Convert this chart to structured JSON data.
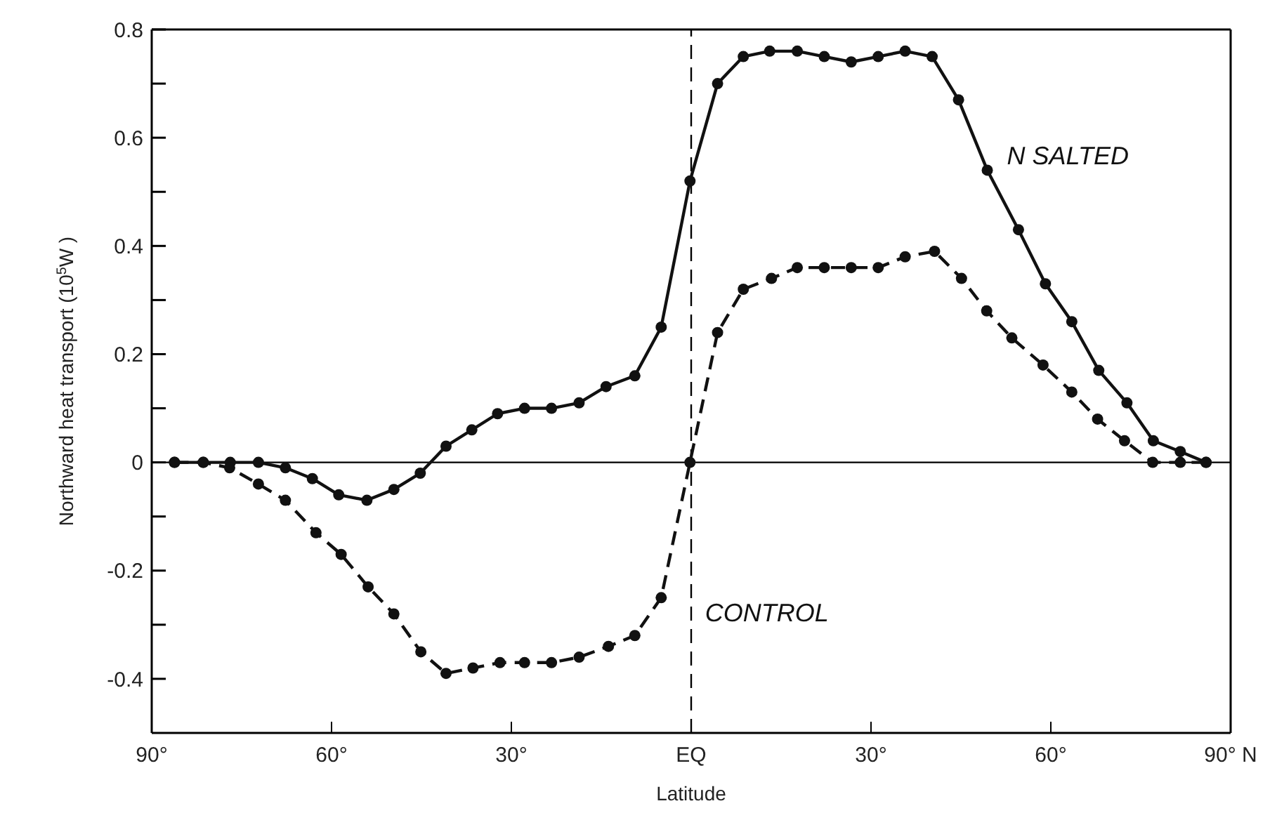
{
  "chart_data": {
    "type": "line",
    "xlabel": "Latitude",
    "ylabel": "Northward heat transport (10$^{5}$W )",
    "xlim": [
      -90,
      90
    ],
    "xticks": [
      {
        "value": -90,
        "label": "90°"
      },
      {
        "value": -60,
        "label": "60°"
      },
      {
        "value": -30,
        "label": "30°"
      },
      {
        "value": 0,
        "label": "EQ"
      },
      {
        "value": 30,
        "label": "30°"
      },
      {
        "value": 60,
        "label": "60°"
      },
      {
        "value": 90,
        "label": "90° N"
      }
    ],
    "ylim": [
      -0.5,
      0.8
    ],
    "yticks": [
      -0.4,
      {
        "value": -0.3,
        "label": null
      },
      -0.2,
      {
        "value": -0.1,
        "label": null
      },
      0,
      {
        "value": 0.1,
        "label": null
      },
      0.2,
      {
        "value": 0.3,
        "label": null
      },
      0.4,
      {
        "value": 0.5,
        "label": null
      },
      0.6,
      {
        "value": 0.7,
        "label": null
      },
      0.8
    ],
    "marker": "circle",
    "ref_lines": [
      {
        "axis": "x",
        "value": 0,
        "line_style": "dashed",
        "color": "#000000"
      },
      {
        "axis": "y",
        "value": 0,
        "line_style": "solid",
        "color": "#000000"
      }
    ],
    "series": [
      {
        "name": "N SALTED",
        "color": "#111111",
        "line_style": "solid",
        "x": [
          -86.2,
          -81.4,
          -76.9,
          -72.2,
          -67.7,
          -63.2,
          -58.8,
          -54.1,
          -49.6,
          -45.2,
          -40.9,
          -36.6,
          -32.3,
          -27.8,
          -23.3,
          -18.7,
          -14.2,
          -9.4,
          -5,
          -0.2,
          4.4,
          8.7,
          13.1,
          17.7,
          22.2,
          26.7,
          31.2,
          35.7,
          40.2,
          44.6,
          49.4,
          54.6,
          59.1,
          63.5,
          68,
          72.7,
          77.1,
          81.6,
          85.9
        ],
        "values": [
          0,
          0,
          0,
          0,
          -0.01,
          -0.03,
          -0.06,
          -0.07,
          -0.05,
          -0.02,
          0.03,
          0.06,
          0.09,
          0.1,
          0.1,
          0.11,
          0.14,
          0.16,
          0.25,
          0.52,
          0.7,
          0.75,
          0.76,
          0.76,
          0.75,
          0.74,
          0.75,
          0.76,
          0.75,
          0.67,
          0.54,
          0.43,
          0.33,
          0.26,
          0.17,
          0.11,
          0.04,
          0.02,
          0
        ]
      },
      {
        "name": "CONTROL",
        "color": "#111111",
        "line_style": "dashed",
        "x": [
          -86.2,
          -81.4,
          -77,
          -72.2,
          -67.7,
          -62.6,
          -58.4,
          -53.9,
          -49.6,
          -45.1,
          -40.9,
          -36.4,
          -31.9,
          -27.8,
          -23.3,
          -18.7,
          -13.8,
          -9.4,
          -5,
          -0.2,
          4.4,
          8.7,
          13.4,
          17.7,
          22.2,
          26.7,
          31.2,
          35.7,
          40.6,
          45.1,
          49.3,
          53.5,
          58.7,
          63.5,
          67.8,
          72.3,
          77,
          81.6,
          85.9
        ],
        "values": [
          0,
          0,
          -0.01,
          -0.04,
          -0.07,
          -0.13,
          -0.17,
          -0.23,
          -0.28,
          -0.35,
          -0.39,
          -0.38,
          -0.37,
          -0.37,
          -0.37,
          -0.36,
          -0.34,
          -0.32,
          -0.25,
          0,
          0.24,
          0.32,
          0.34,
          0.36,
          0.36,
          0.36,
          0.36,
          0.38,
          0.39,
          0.34,
          0.28,
          0.23,
          0.18,
          0.13,
          0.08,
          0.04,
          0,
          0,
          0
        ]
      }
    ]
  }
}
